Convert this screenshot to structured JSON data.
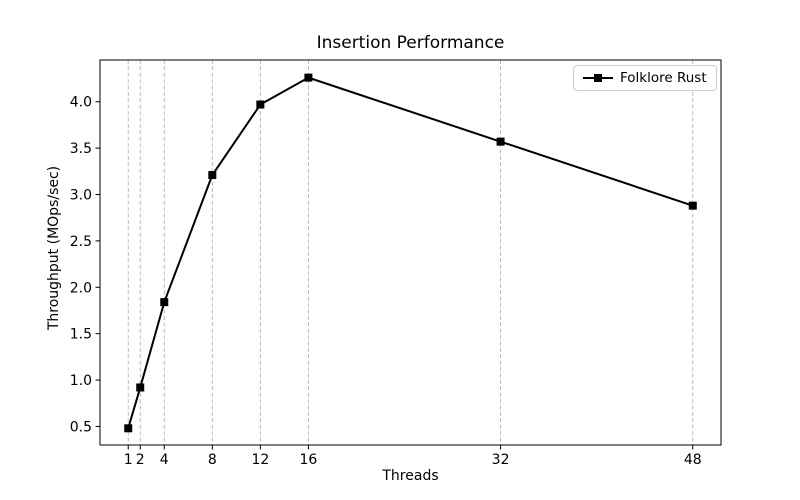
{
  "figure": {
    "background": "#ffffff"
  },
  "legend": {
    "label": "Folklore Rust",
    "position": "upper right"
  },
  "colors": {
    "series": "#000000",
    "grid": "#b0b0b0",
    "spine": "#000000",
    "text": "#000000",
    "legend_border": "#cccccc"
  },
  "chart_data": {
    "type": "line",
    "title": "Insertion Performance",
    "xlabel": "Threads",
    "ylabel": "Throughput (MOps/sec)",
    "series": [
      {
        "name": "Folklore Rust",
        "x": [
          1,
          2,
          4,
          8,
          12,
          16,
          32,
          48
        ],
        "y": [
          0.48,
          0.92,
          1.84,
          3.21,
          3.97,
          4.26,
          3.57,
          2.88
        ],
        "color": "#000000",
        "marker": "square",
        "marker_size": 8,
        "line_width": 2
      }
    ],
    "x_ticks": [
      1,
      2,
      4,
      8,
      12,
      16,
      32,
      48
    ],
    "x_tick_labels": [
      "1",
      "2",
      "4",
      "8",
      "12",
      "16",
      "32",
      "48"
    ],
    "y_ticks": [
      0.5,
      1.0,
      1.5,
      2.0,
      2.5,
      3.0,
      3.5,
      4.0
    ],
    "y_tick_labels": [
      "0.5",
      "1.0",
      "1.5",
      "2.0",
      "2.5",
      "3.0",
      "3.5",
      "4.0"
    ],
    "xlim": [
      -1.35,
      50.35
    ],
    "ylim": [
      0.3,
      4.45
    ],
    "grid": {
      "axis": "x",
      "style": "dashed",
      "color": "#b0b0b0"
    },
    "legend_position": "upper right"
  }
}
